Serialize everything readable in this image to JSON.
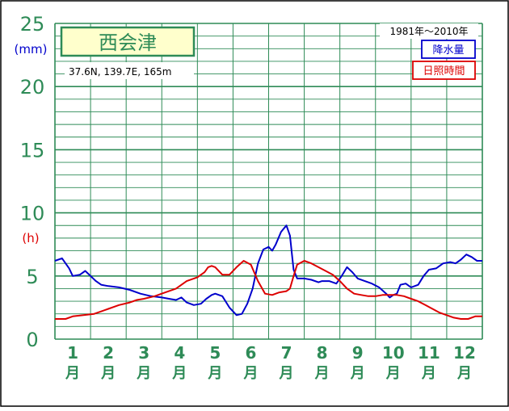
{
  "chart_data": {
    "type": "line",
    "title": "西会津",
    "location": "37.6N, 139.7E, 165m",
    "period": "1981年～2010年",
    "y_unit_top": "(mm)",
    "y_unit_bottom": "(h)",
    "ylim": [
      0,
      25
    ],
    "y_ticks": [
      "0",
      "5",
      "10",
      "15",
      "20",
      "25"
    ],
    "x_range": [
      0.5,
      12.5
    ],
    "month_numbers": [
      "1",
      "2",
      "3",
      "4",
      "5",
      "6",
      "7",
      "8",
      "9",
      "10",
      "11",
      "12"
    ],
    "month_suffix": "月",
    "grid": true,
    "legend_placement": "top-right",
    "colors": {
      "frame": "#000000",
      "grid": "#2e8b57",
      "axis_text": "#2e8b57",
      "title_bg": "#ffffcc",
      "precip": "#0000cc",
      "sunshine": "#dd0000"
    },
    "series": [
      {
        "name": "降水量",
        "color": "#0000cc",
        "x": [
          0.5,
          0.7,
          0.9,
          1.0,
          1.2,
          1.35,
          1.5,
          1.65,
          1.8,
          2.0,
          2.3,
          2.6,
          2.9,
          3.2,
          3.5,
          3.7,
          3.9,
          4.05,
          4.2,
          4.4,
          4.6,
          4.75,
          4.9,
          5.0,
          5.2,
          5.4,
          5.6,
          5.75,
          5.9,
          6.05,
          6.2,
          6.35,
          6.5,
          6.6,
          6.7,
          6.85,
          7.0,
          7.1,
          7.15,
          7.2,
          7.3,
          7.5,
          7.7,
          7.9,
          8.0,
          8.2,
          8.4,
          8.55,
          8.7,
          8.85,
          9.0,
          9.2,
          9.4,
          9.6,
          9.8,
          9.9,
          10.0,
          10.1,
          10.2,
          10.35,
          10.5,
          10.7,
          10.85,
          11.0,
          11.2,
          11.4,
          11.6,
          11.75,
          11.9,
          12.05,
          12.2,
          12.35,
          12.5
        ],
        "values": [
          6.2,
          6.4,
          5.6,
          5.0,
          5.1,
          5.4,
          5.0,
          4.6,
          4.3,
          4.2,
          4.1,
          3.9,
          3.6,
          3.4,
          3.3,
          3.2,
          3.1,
          3.3,
          2.9,
          2.7,
          2.8,
          3.2,
          3.5,
          3.6,
          3.4,
          2.5,
          1.9,
          2.0,
          2.8,
          4.0,
          6.0,
          7.1,
          7.3,
          7.0,
          7.5,
          8.5,
          9.0,
          8.2,
          6.8,
          5.5,
          4.8,
          4.8,
          4.7,
          4.5,
          4.6,
          4.6,
          4.4,
          5.0,
          5.7,
          5.3,
          4.8,
          4.6,
          4.4,
          4.1,
          3.6,
          3.3,
          3.5,
          3.6,
          4.3,
          4.4,
          4.1,
          4.3,
          5.0,
          5.5,
          5.6,
          6.0,
          6.1,
          6.0,
          6.3,
          6.7,
          6.5,
          6.2,
          6.2
        ]
      },
      {
        "name": "日照時間",
        "color": "#dd0000",
        "x": [
          0.5,
          0.8,
          1.0,
          1.3,
          1.6,
          2.0,
          2.3,
          2.6,
          2.8,
          3.0,
          3.3,
          3.6,
          3.9,
          4.2,
          4.5,
          4.7,
          4.8,
          4.9,
          5.0,
          5.2,
          5.4,
          5.6,
          5.8,
          6.0,
          6.2,
          6.4,
          6.6,
          6.8,
          7.0,
          7.1,
          7.2,
          7.3,
          7.5,
          7.7,
          7.9,
          8.1,
          8.3,
          8.5,
          8.7,
          8.9,
          9.1,
          9.3,
          9.5,
          9.7,
          9.9,
          10.1,
          10.3,
          10.5,
          10.7,
          10.9,
          11.1,
          11.3,
          11.5,
          11.7,
          11.9,
          12.1,
          12.3,
          12.5
        ],
        "values": [
          1.6,
          1.6,
          1.8,
          1.9,
          2.0,
          2.4,
          2.7,
          2.9,
          3.1,
          3.2,
          3.4,
          3.7,
          4.0,
          4.6,
          4.9,
          5.3,
          5.7,
          5.8,
          5.7,
          5.1,
          5.1,
          5.7,
          6.2,
          5.9,
          4.6,
          3.6,
          3.5,
          3.7,
          3.8,
          4.0,
          5.0,
          5.9,
          6.2,
          6.0,
          5.7,
          5.4,
          5.1,
          4.6,
          4.0,
          3.6,
          3.5,
          3.4,
          3.4,
          3.5,
          3.5,
          3.5,
          3.4,
          3.2,
          3.0,
          2.7,
          2.4,
          2.1,
          1.9,
          1.7,
          1.6,
          1.6,
          1.8,
          1.8
        ]
      }
    ]
  }
}
